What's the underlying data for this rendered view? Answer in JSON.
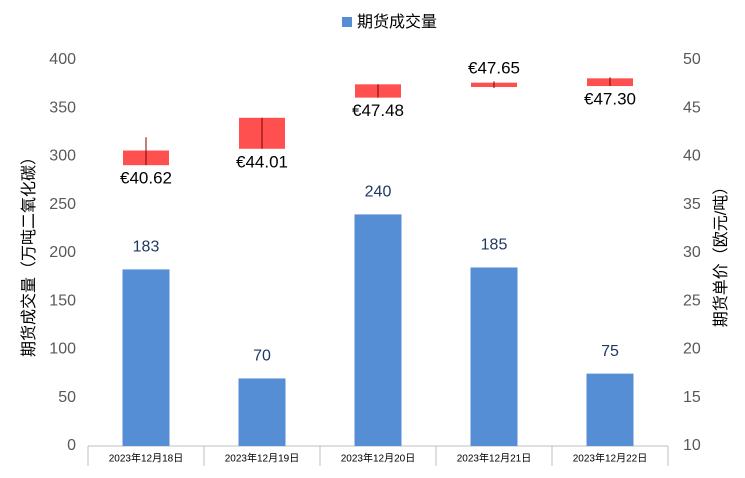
{
  "chart_data": {
    "type": "bar",
    "categories": [
      "2023年12月18日",
      "2023年12月19日",
      "2023年12月20日",
      "2023年12月21日",
      "2023年12月22日"
    ],
    "series": [
      {
        "name": "期货成交量",
        "type": "bar",
        "color": "#558ed5",
        "values": [
          183,
          70,
          240,
          185,
          75
        ]
      },
      {
        "type": "candlestick",
        "axis": "y2",
        "color": "#ff5050",
        "open": [
          39.1,
          40.8,
          46.1,
          47.2,
          48.1
        ],
        "high": [
          42.0,
          44.01,
          47.48,
          47.8,
          48.2
        ],
        "low": [
          39.1,
          40.8,
          46.1,
          47.1,
          47.3
        ],
        "close": [
          40.62,
          44.01,
          47.48,
          47.65,
          47.3
        ],
        "value_labels": [
          "€40.62",
          "€44.01",
          "€47.48",
          "€47.65",
          "€47.30"
        ]
      }
    ],
    "ylabel": "期货成交量（万吨二氧化碳）",
    "y2label": "期货单价（欧元/吨）",
    "ylim": [
      0,
      400
    ],
    "yticks": [
      0,
      50,
      100,
      150,
      200,
      250,
      300,
      350,
      400
    ],
    "y2lim": [
      10,
      50
    ],
    "y2ticks": [
      10,
      15,
      20,
      25,
      30,
      35,
      40,
      45,
      50
    ],
    "legend": "top",
    "grid": false
  }
}
